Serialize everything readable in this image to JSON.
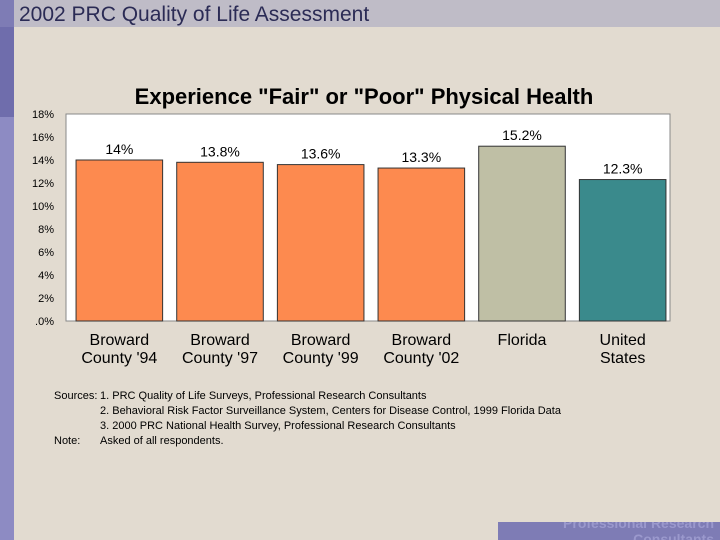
{
  "header": {
    "title": "2002 PRC Quality of Life Assessment"
  },
  "chart_data": {
    "type": "bar",
    "title": "Experience \"Fair\" or \"Poor\" Physical Health",
    "categories": [
      [
        "Broward",
        "County '94"
      ],
      [
        "Broward",
        "County '97"
      ],
      [
        "Broward",
        "County '99"
      ],
      [
        "Broward",
        "County '02"
      ],
      [
        "Florida"
      ],
      [
        "United",
        "States"
      ]
    ],
    "values": [
      14,
      13.8,
      13.6,
      13.3,
      15.2,
      12.3
    ],
    "value_labels": [
      "14%",
      "13.8%",
      "13.6%",
      "13.3%",
      "15.2%",
      "12.3%"
    ],
    "colors": [
      "#fd8a4f",
      "#fd8a4f",
      "#fd8a4f",
      "#fd8a4f",
      "#bfbfa5",
      "#3a8a8c"
    ],
    "ylim": [
      0,
      18
    ],
    "yticks": [
      ".0%",
      "2%",
      "4%",
      "6%",
      "8%",
      "10%",
      "12%",
      "14%",
      "16%",
      "18%"
    ],
    "xlabel": "",
    "ylabel": ""
  },
  "notes": {
    "sources_label": "Sources:",
    "sources": [
      "1. PRC Quality of Life Surveys, Professional Research Consultants",
      "2. Behavioral Risk Factor Surveillance System, Centers for Disease Control, 1999 Florida Data",
      "3. 2000 PRC National Health Survey, Professional Research Consultants"
    ],
    "note_label": "Note:",
    "note": "Asked of all respondents."
  },
  "footer": {
    "text": "Professional Research Consultants"
  }
}
